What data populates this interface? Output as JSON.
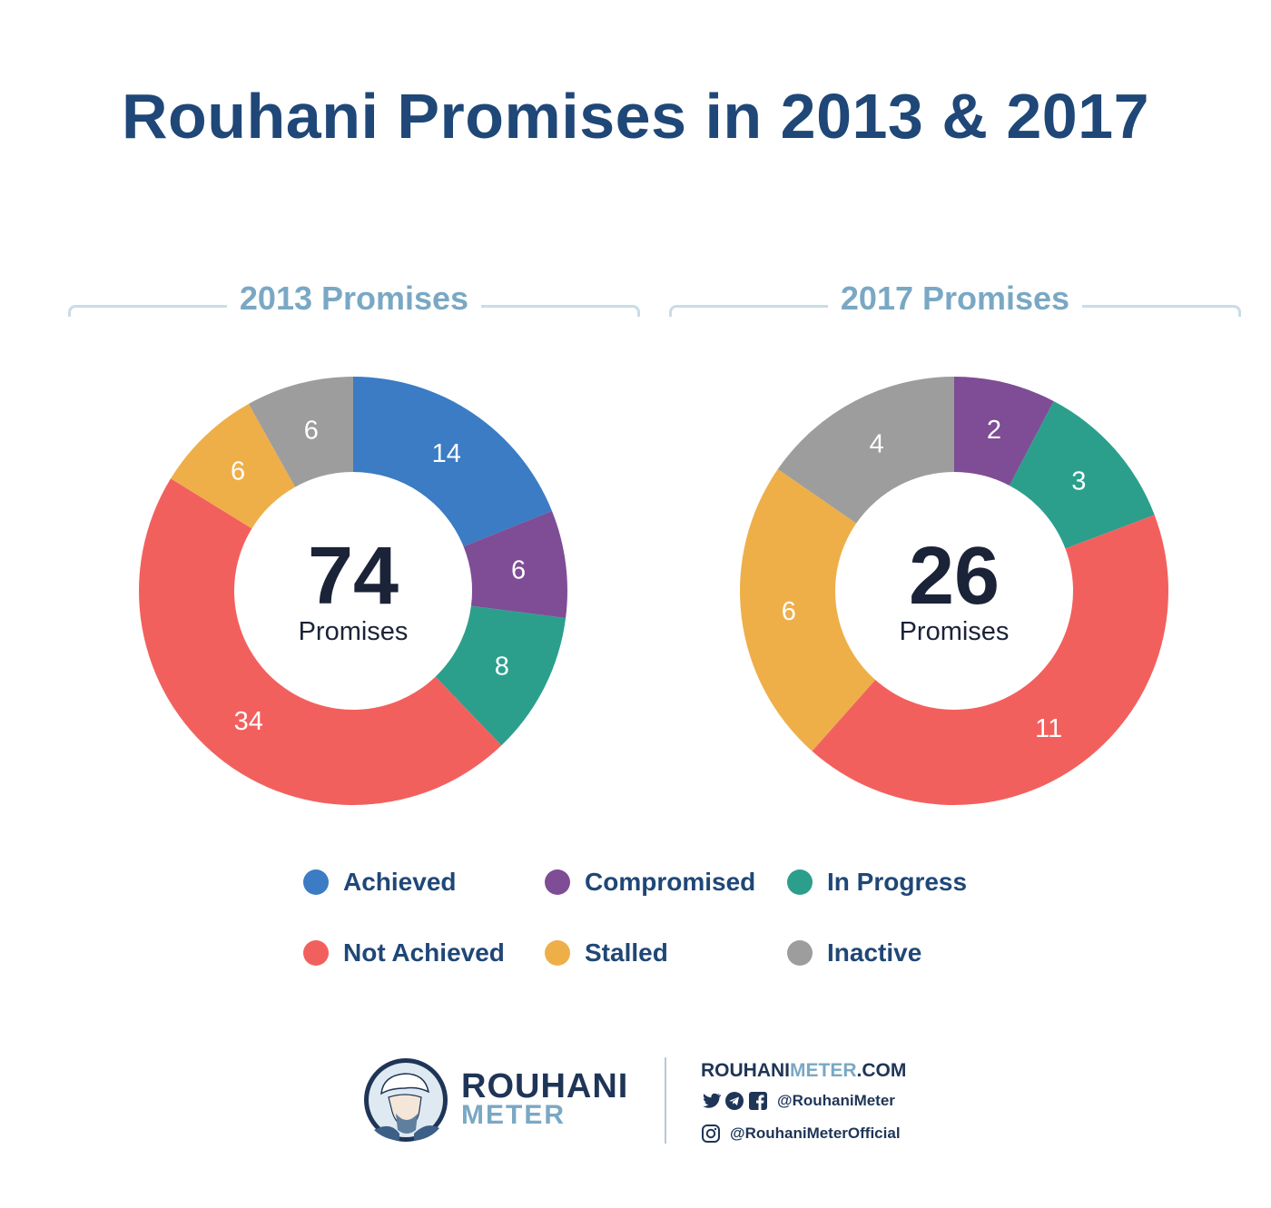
{
  "title": "Rouhani Promises in 2013 & 2017",
  "colors": {
    "achieved": "#3b7cc4",
    "compromised": "#7e4d95",
    "in_progress": "#2b9f8c",
    "not_achieved": "#f2605e",
    "stalled": "#eeaf49",
    "inactive": "#9d9d9d",
    "title": "#1f4777",
    "subtitle": "#7aa8c4"
  },
  "chart_data": [
    {
      "type": "pie",
      "donut": true,
      "subtitle": "2013 Promises",
      "center_value": "74",
      "center_label": "Promises",
      "slices": [
        {
          "label": "Achieved",
          "value": 14
        },
        {
          "label": "Compromised",
          "value": 6
        },
        {
          "label": "In Progress",
          "value": 8
        },
        {
          "label": "Not Achieved",
          "value": 34
        },
        {
          "label": "Stalled",
          "value": 6
        },
        {
          "label": "Inactive",
          "value": 6
        }
      ]
    },
    {
      "type": "pie",
      "donut": true,
      "subtitle": "2017 Promises",
      "center_value": "26",
      "center_label": "Promises",
      "slices": [
        {
          "label": "Compromised",
          "value": 2
        },
        {
          "label": "In Progress",
          "value": 3
        },
        {
          "label": "Not Achieved",
          "value": 11
        },
        {
          "label": "Stalled",
          "value": 6
        },
        {
          "label": "Inactive",
          "value": 4
        }
      ]
    }
  ],
  "legend": [
    {
      "label": "Achieved",
      "color": "#3b7cc4"
    },
    {
      "label": "Compromised",
      "color": "#7e4d95"
    },
    {
      "label": "In Progress",
      "color": "#2b9f8c"
    },
    {
      "label": "Not Achieved",
      "color": "#f2605e"
    },
    {
      "label": "Stalled",
      "color": "#eeaf49"
    },
    {
      "label": "Inactive",
      "color": "#9d9d9d"
    }
  ],
  "footer": {
    "brand_line1": "ROUHANI",
    "brand_line2": "METER",
    "website_main": "ROUHANI",
    "website_accent": "METER",
    "website_tail": ".COM",
    "handle_1": "@RouhaniMeter",
    "handle_2": "@RouhaniMeterOfficial",
    "icons": [
      "twitter-icon",
      "telegram-icon",
      "facebook-icon",
      "instagram-icon"
    ]
  }
}
